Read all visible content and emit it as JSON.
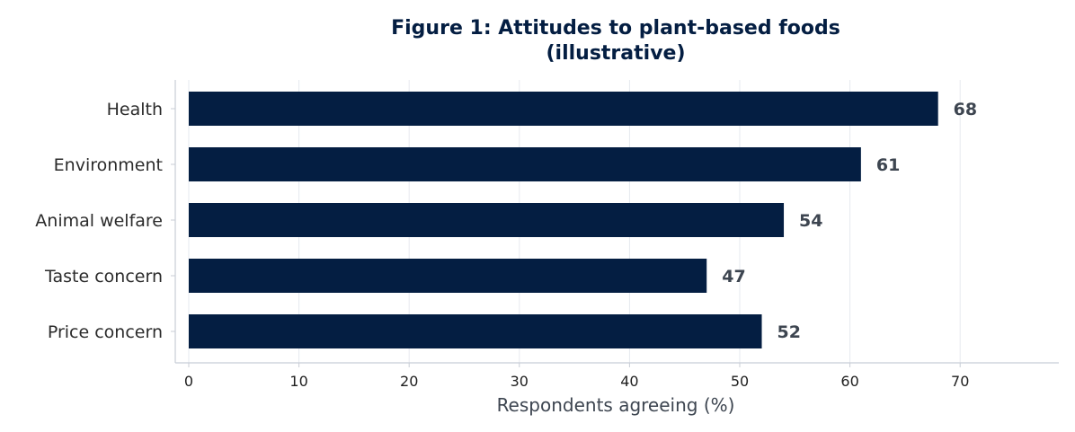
{
  "colors": {
    "bar": "#041e42",
    "title": "#041e42",
    "label_text": "#2b2b2b",
    "data_label": "#3d4550",
    "axis_title": "#3d4550",
    "grid": "#e6e9ef",
    "axis_line": "#c8cdd6"
  },
  "chart_data": {
    "type": "bar",
    "orientation": "horizontal",
    "title": "Figure 1: Attitudes to plant-based foods",
    "subtitle": "(illustrative)",
    "xlabel": "Respondents agreeing (%)",
    "ylabel": "",
    "categories": [
      "Health",
      "Environment",
      "Animal welfare",
      "Taste concern",
      "Price concern"
    ],
    "values": [
      68,
      61,
      54,
      47,
      52
    ],
    "data_labels": [
      "68",
      "61",
      "54",
      "47",
      "52"
    ],
    "xlim": [
      0,
      79
    ],
    "xticks": [
      0,
      10,
      20,
      30,
      40,
      50,
      60,
      70
    ],
    "xtick_labels": [
      "0",
      "10",
      "20",
      "30",
      "40",
      "50",
      "60",
      "70"
    ],
    "grid": "vertical",
    "legend": "none"
  }
}
